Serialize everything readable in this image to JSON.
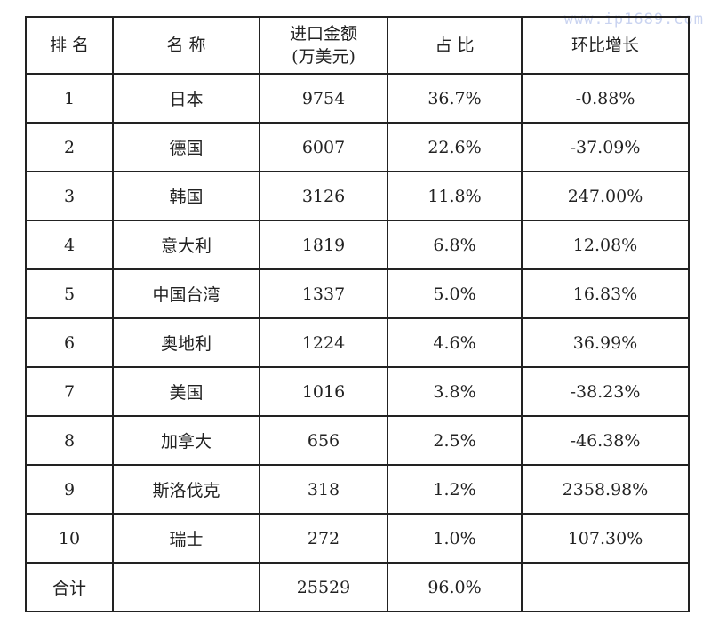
{
  "watermark": "www.ip1689.com",
  "table": {
    "headers": [
      "排 名",
      "名 称",
      "进口金额",
      "(万美元)",
      "占 比",
      "环比增长"
    ],
    "rows": [
      [
        "1",
        "日本",
        "9754",
        "36.7%",
        "-0.88%"
      ],
      [
        "2",
        "德国",
        "6007",
        "22.6%",
        "-37.09%"
      ],
      [
        "3",
        "韩国",
        "3126",
        "11.8%",
        "247.00%"
      ],
      [
        "4",
        "意大利",
        "1819",
        "6.8%",
        "12.08%"
      ],
      [
        "5",
        "中国台湾",
        "1337",
        "5.0%",
        "16.83%"
      ],
      [
        "6",
        "奥地利",
        "1224",
        "4.6%",
        "36.99%"
      ],
      [
        "7",
        "美国",
        "1016",
        "3.8%",
        "-38.23%"
      ],
      [
        "8",
        "加拿大",
        "656",
        "2.5%",
        "-46.38%"
      ],
      [
        "9",
        "斯洛伐克",
        "318",
        "1.2%",
        "2358.98%"
      ],
      [
        "10",
        "瑞士",
        "272",
        "1.0%",
        "107.30%"
      ]
    ],
    "total": {
      "label": "合计",
      "name": "——",
      "amount": "25529",
      "share": "96.0%",
      "growth": "——"
    }
  }
}
